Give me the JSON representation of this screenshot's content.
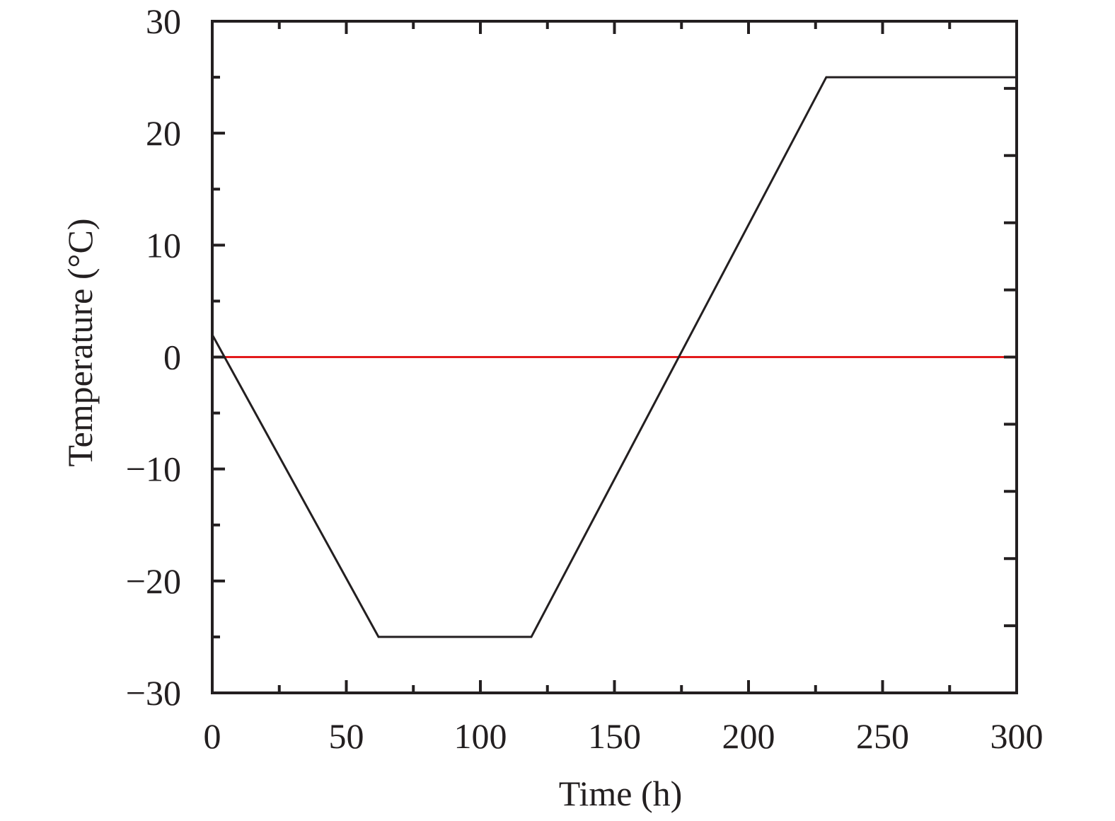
{
  "chart_data": {
    "type": "line",
    "xlabel": "Time (h)",
    "ylabel": "Temperature (°C)",
    "xlim": [
      0,
      300
    ],
    "ylim": [
      -30,
      30
    ],
    "x_ticks": [
      0,
      50,
      100,
      150,
      200,
      250,
      300
    ],
    "y_ticks": [
      -30,
      -20,
      -10,
      0,
      10,
      20,
      30
    ],
    "x_tick_labels": [
      "0",
      "50",
      "100",
      "150",
      "200",
      "250",
      "300"
    ],
    "y_tick_labels": [
      "−30",
      "−20",
      "−10",
      "0",
      "10",
      "20",
      "30"
    ],
    "x_minor_ticks": [
      25,
      75,
      125,
      175,
      225,
      275
    ],
    "y_minor_ticks": [
      -25,
      -15,
      -5,
      5,
      15,
      25
    ],
    "right_axis_ticks": [
      24,
      18,
      12,
      6,
      0,
      -6,
      -12,
      -18,
      -24
    ],
    "grid": false,
    "series": [
      {
        "color": "#231f20",
        "x": [
          0,
          62,
          119,
          229,
          300
        ],
        "y": [
          2,
          -25,
          -25,
          25,
          25
        ]
      },
      {
        "color": "#e31a1c",
        "x": [
          0,
          300
        ],
        "y": [
          0,
          0
        ]
      }
    ]
  }
}
